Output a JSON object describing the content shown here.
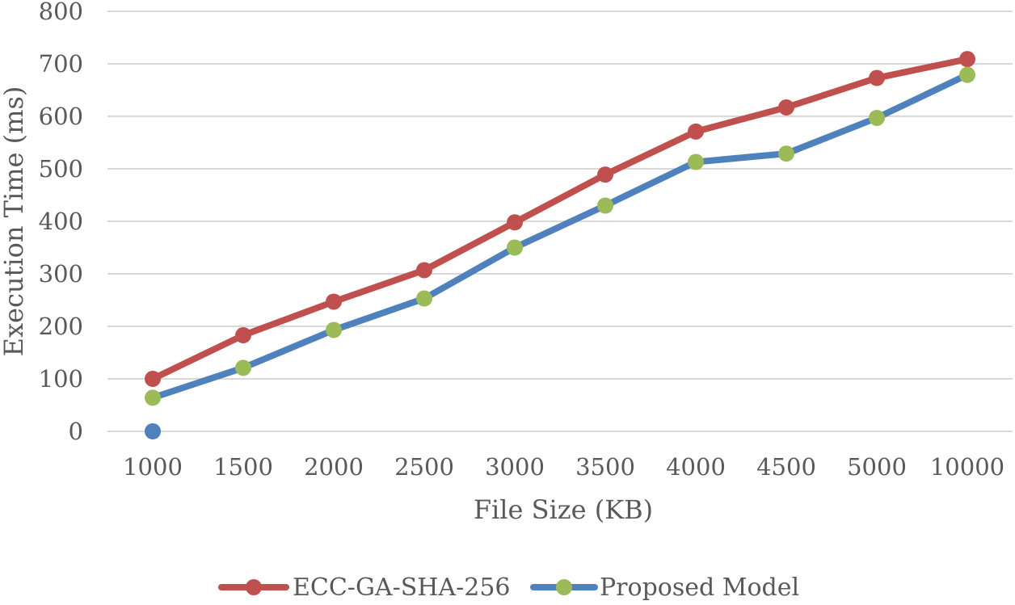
{
  "chart_data": {
    "type": "line",
    "title": "",
    "xlabel": "File Size (KB)",
    "ylabel": "Execution Time (ms)",
    "categories": [
      "1000",
      "1500",
      "2000",
      "2500",
      "3000",
      "3500",
      "4000",
      "4500",
      "5000",
      "10000"
    ],
    "ylim": [
      0,
      800
    ],
    "yticks": [
      0,
      100,
      200,
      300,
      400,
      500,
      600,
      700,
      800
    ],
    "grid": true,
    "legend_position": "bottom",
    "series": [
      {
        "name": "ECC-GA-SHA-256",
        "values": [
          100,
          183,
          247,
          307,
          398,
          489,
          571,
          617,
          673,
          709
        ],
        "line_color": "#c0504d",
        "marker_color": "#c0504d"
      },
      {
        "name": "Proposed Model",
        "values": [
          64,
          121,
          193,
          253,
          350,
          430,
          513,
          529,
          597,
          679
        ],
        "line_color": "#4f81bd",
        "marker_color": "#9bbb59"
      }
    ],
    "extra_points": [
      {
        "category": "1000",
        "value": 0,
        "color": "#4f81bd"
      }
    ]
  }
}
